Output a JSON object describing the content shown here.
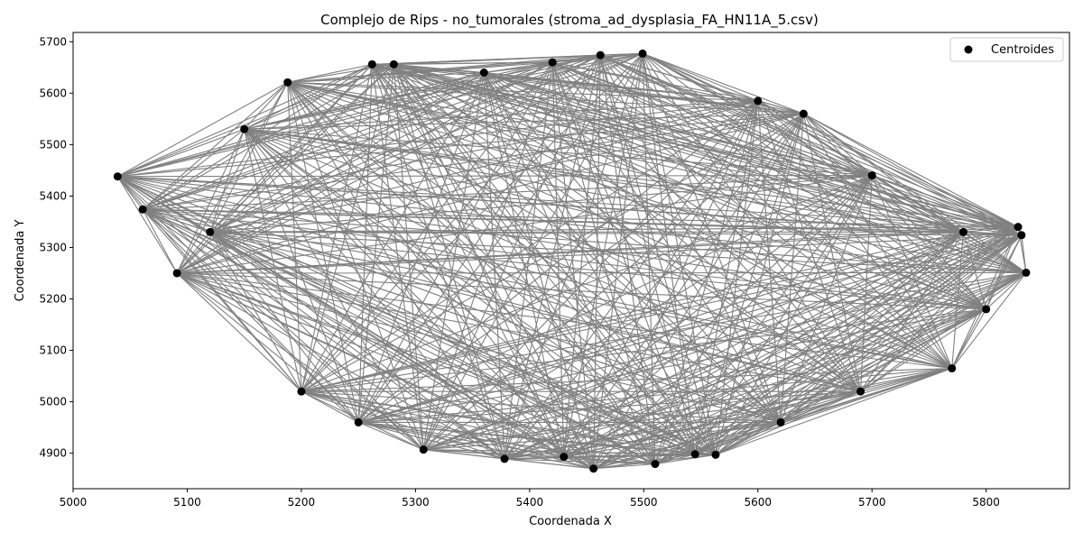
{
  "chart_data": {
    "type": "scatter",
    "title": "Complejo de Rips - no_tumorales (stroma_ad_dysplasia_FA_HN11A_5.csv)",
    "xlabel": "Coordenada X",
    "ylabel": "Coordenada Y",
    "xlim": [
      5000,
      5873
    ],
    "ylim": [
      4831,
      5718
    ],
    "xticks": [
      5000,
      5100,
      5200,
      5300,
      5400,
      5500,
      5600,
      5700,
      5800
    ],
    "yticks": [
      4900,
      5000,
      5100,
      5200,
      5300,
      5400,
      5500,
      5600,
      5700
    ],
    "legend": {
      "entries": [
        "Centroides"
      ],
      "position": "top-right"
    },
    "grid": false,
    "series": [
      {
        "name": "Centroides",
        "color": "#000000",
        "points": [
          [
            5039,
            5438
          ],
          [
            5061,
            5374
          ],
          [
            5091,
            5250
          ],
          [
            5188,
            5621
          ],
          [
            5262,
            5656
          ],
          [
            5281,
            5656
          ],
          [
            5307,
            4907
          ],
          [
            5378,
            4889
          ],
          [
            5456,
            4870
          ],
          [
            5462,
            5674
          ],
          [
            5499,
            5677
          ],
          [
            5510,
            4879
          ],
          [
            5545,
            4898
          ],
          [
            5563,
            4897
          ],
          [
            5600,
            5585
          ],
          [
            5770,
            5065
          ],
          [
            5828,
            5340
          ],
          [
            5831,
            5324
          ],
          [
            5835,
            5251
          ],
          [
            5360,
            5640
          ],
          [
            5420,
            5660
          ],
          [
            5430,
            4893
          ],
          [
            5640,
            5560
          ],
          [
            5700,
            5440
          ],
          [
            5780,
            5330
          ],
          [
            5150,
            5530
          ],
          [
            5120,
            5330
          ],
          [
            5200,
            5020
          ],
          [
            5250,
            4960
          ],
          [
            5620,
            4960
          ],
          [
            5690,
            5020
          ],
          [
            5800,
            5180
          ]
        ]
      }
    ],
    "edges_color": "#808080"
  }
}
